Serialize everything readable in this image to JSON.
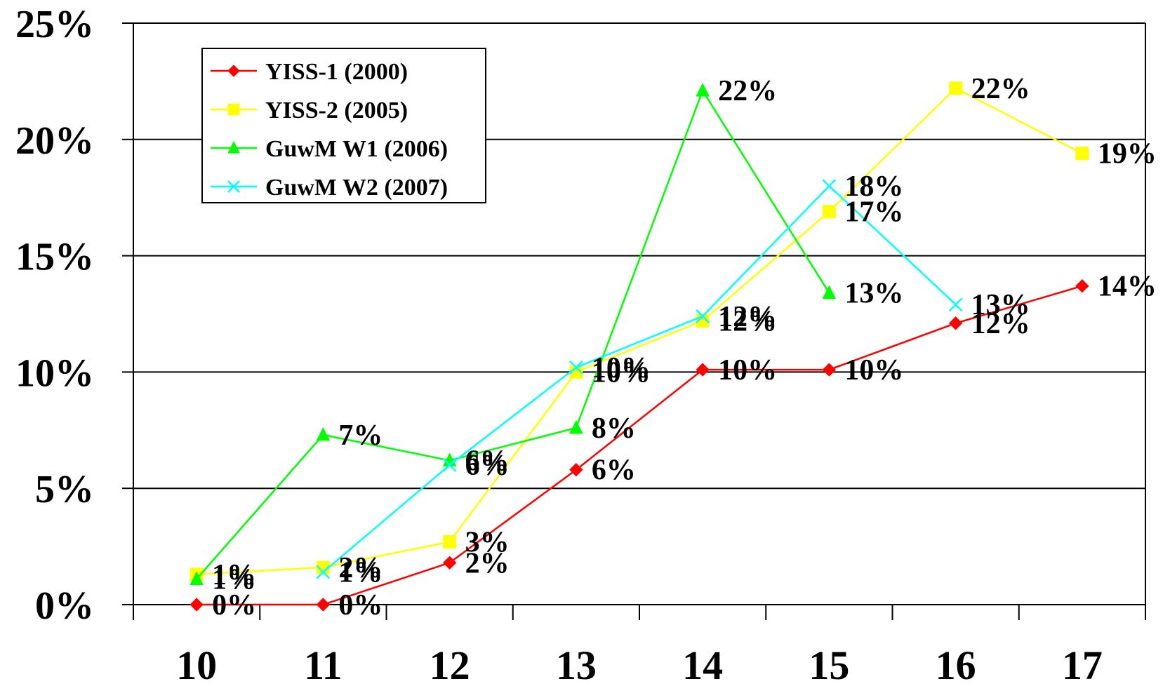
{
  "chart_data": {
    "type": "line",
    "title": "",
    "xlabel": "",
    "ylabel": "",
    "x": [
      10,
      11,
      12,
      13,
      14,
      15,
      16,
      17
    ],
    "x_tick_labels": [
      "10",
      "11",
      "12",
      "13",
      "14",
      "15",
      "16",
      "17"
    ],
    "ylim": [
      0,
      25
    ],
    "y_ticks": [
      0,
      5,
      10,
      15,
      20,
      25
    ],
    "y_tick_labels": [
      "0%",
      "5%",
      "10%",
      "15%",
      "20%",
      "25%"
    ],
    "grid": "horizontal",
    "legend_position": "top-left",
    "series": [
      {
        "name": "YISS-1 (2000)",
        "color": "#ff0000",
        "marker": "diamond",
        "values": [
          0,
          0,
          1.8,
          5.8,
          10.1,
          10.1,
          12.1,
          13.7
        ],
        "labels": [
          "0%",
          "0%",
          "2%",
          "6%",
          "10%",
          "10%",
          "12%",
          "14%"
        ]
      },
      {
        "name": "YISS-2 (2005)",
        "color": "#ffff00",
        "marker": "square",
        "values": [
          1.3,
          1.6,
          2.7,
          10.0,
          12.2,
          16.9,
          22.2,
          19.4
        ],
        "labels": [
          "1%",
          "2%",
          "3%",
          "10%",
          "12%",
          "17%",
          "22%",
          "19%"
        ]
      },
      {
        "name": "GuwM W1 (2006)",
        "color": "#00ff00",
        "marker": "triangle",
        "values": [
          1.1,
          7.3,
          6.2,
          7.6,
          22.1,
          13.4,
          null,
          null
        ],
        "labels": [
          "1%",
          "7%",
          "6%",
          "8%",
          "22%",
          "13%",
          "",
          ""
        ]
      },
      {
        "name": "GuwM W2 (2007)",
        "color": "#00ffff",
        "marker": "x",
        "values": [
          null,
          1.4,
          6.0,
          10.2,
          12.4,
          18.0,
          12.9,
          null
        ],
        "labels": [
          "",
          "1%",
          "6%",
          "10%",
          "12%",
          "18%",
          "13%",
          ""
        ]
      }
    ]
  }
}
